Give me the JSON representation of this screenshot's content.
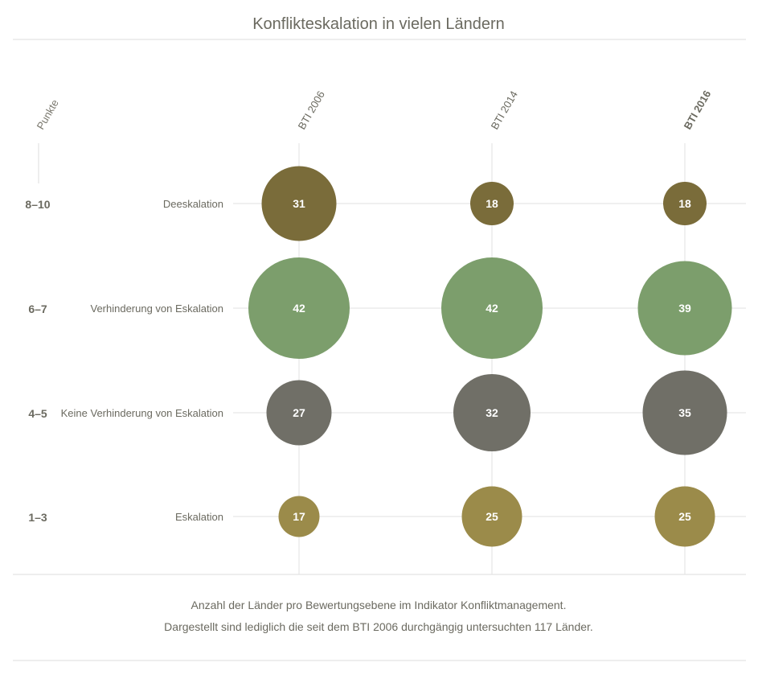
{
  "chart_data": {
    "type": "bubble",
    "title": "Konflikteskalation in vielen Ländern",
    "y_axis_title": "Punkte",
    "columns": [
      "BTI 2006",
      "BTI 2014",
      "BTI 2016"
    ],
    "highlight_column": "BTI 2016",
    "rows": [
      {
        "points": "8–10",
        "label": "Deeskalation",
        "color": "#7a6c3a",
        "values": [
          31,
          18,
          18
        ]
      },
      {
        "points": "6–7",
        "label": "Verhinderung von Eskalation",
        "color": "#7c9e6c",
        "values": [
          42,
          42,
          39
        ]
      },
      {
        "points": "4–5",
        "label": "Keine Verhinderung von Eskalation",
        "color": "#706f67",
        "values": [
          27,
          32,
          35
        ]
      },
      {
        "points": "1–3",
        "label": "Eskalation",
        "color": "#9b8b4a",
        "values": [
          17,
          25,
          25
        ]
      }
    ],
    "notes": [
      "Anzahl der Länder pro Bewertungsebene im Indikator Konfliktmanagement.",
      "Dargestellt sind lediglich die seit dem BTI 2006 durchgängig untersuchten 117 Länder."
    ]
  }
}
